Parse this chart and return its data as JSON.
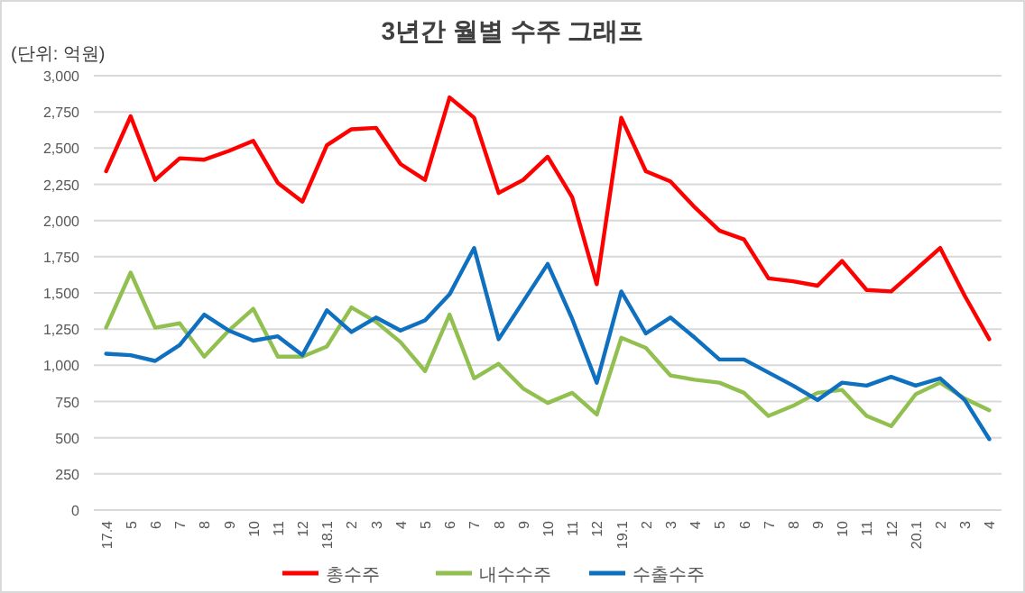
{
  "chart_data": {
    "type": "line",
    "title": "3년간 월별 수주 그래프",
    "ylabel": "(단위: 억원)",
    "categories": [
      "17.4",
      "5",
      "6",
      "7",
      "8",
      "9",
      "10",
      "11",
      "12",
      "18.1",
      "2",
      "3",
      "4",
      "5",
      "6",
      "7",
      "8",
      "9",
      "10",
      "11",
      "12",
      "19.1",
      "2",
      "3",
      "4",
      "5",
      "6",
      "7",
      "8",
      "9",
      "10",
      "11",
      "12",
      "20.1",
      "2",
      "3",
      "4"
    ],
    "series": [
      {
        "name": "총수주",
        "color": "#ff0000",
        "values": [
          2340,
          2720,
          2280,
          2430,
          2420,
          2480,
          2550,
          2260,
          2130,
          2520,
          2630,
          2640,
          2390,
          2280,
          2850,
          2710,
          2190,
          2280,
          2440,
          2160,
          1560,
          2710,
          2340,
          2270,
          2090,
          1930,
          1870,
          1600,
          1580,
          1550,
          1720,
          1520,
          1510,
          1660,
          1810,
          1480,
          1180
        ]
      },
      {
        "name": "내수수주",
        "color": "#92c050",
        "values": [
          1260,
          1640,
          1260,
          1290,
          1060,
          1240,
          1390,
          1060,
          1060,
          1130,
          1400,
          1300,
          1160,
          960,
          1350,
          910,
          1010,
          840,
          740,
          810,
          660,
          1190,
          1120,
          930,
          900,
          880,
          810,
          650,
          720,
          810,
          830,
          650,
          580,
          800,
          880,
          770,
          690
        ]
      },
      {
        "name": "수출수주",
        "color": "#1070c0",
        "values": [
          1080,
          1070,
          1030,
          1140,
          1350,
          1240,
          1170,
          1200,
          1070,
          1380,
          1230,
          1330,
          1240,
          1310,
          1490,
          1810,
          1180,
          1440,
          1700,
          1320,
          880,
          1510,
          1220,
          1330,
          1190,
          1040,
          1040,
          950,
          860,
          760,
          880,
          860,
          920,
          860,
          910,
          760,
          490
        ]
      }
    ],
    "ylim": [
      0,
      3000
    ],
    "yticks": [
      {
        "value": 0,
        "label": "0"
      },
      {
        "value": 250,
        "label": "250"
      },
      {
        "value": 500,
        "label": "500"
      },
      {
        "value": 750,
        "label": "750"
      },
      {
        "value": 1000,
        "label": "1,000"
      },
      {
        "value": 1250,
        "label": "1,250"
      },
      {
        "value": 1500,
        "label": "1,500"
      },
      {
        "value": 1750,
        "label": "1,750"
      },
      {
        "value": 2000,
        "label": "2,000"
      },
      {
        "value": 2250,
        "label": "2,250"
      },
      {
        "value": 2500,
        "label": "2,500"
      },
      {
        "value": 2750,
        "label": "2,750"
      },
      {
        "value": 3000,
        "label": "3,000"
      }
    ],
    "grid": "y",
    "legend": "bottom",
    "marker": "none",
    "line_style": "solid"
  }
}
